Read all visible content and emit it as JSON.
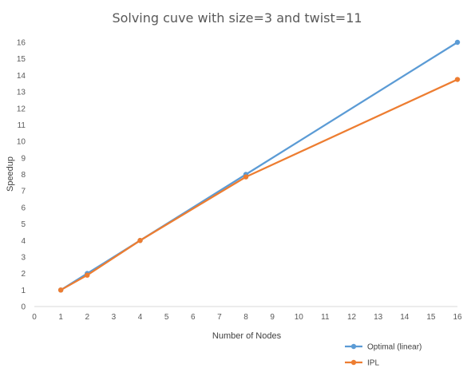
{
  "chart_data": {
    "type": "line",
    "title": "Solving cuve with size=3 and twist=11",
    "xlabel": "Number  of Nodes",
    "ylabel": "Speedup",
    "xlim": [
      0,
      16
    ],
    "ylim": [
      0,
      16
    ],
    "x_ticks": [
      0,
      1,
      2,
      3,
      4,
      5,
      6,
      7,
      8,
      9,
      10,
      11,
      12,
      13,
      14,
      15,
      16
    ],
    "y_ticks": [
      0,
      1,
      2,
      3,
      4,
      5,
      6,
      7,
      8,
      9,
      10,
      11,
      12,
      13,
      14,
      15,
      16
    ],
    "grid": false,
    "legend_position": "bottom-right",
    "series": [
      {
        "name": "Optimal (linear)",
        "color": "#5B9BD5",
        "x": [
          1,
          2,
          4,
          8,
          16
        ],
        "y": [
          1,
          2,
          4,
          8,
          16
        ]
      },
      {
        "name": "IPL",
        "color": "#ED7D31",
        "x": [
          1,
          2,
          4,
          8,
          16
        ],
        "y": [
          1,
          1.9,
          4.0,
          7.85,
          13.75
        ]
      }
    ]
  }
}
